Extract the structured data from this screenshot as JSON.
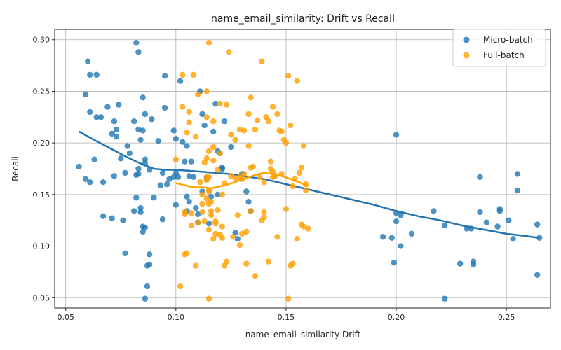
{
  "chart_data": {
    "type": "scatter",
    "title": "name_email_similarity: Drift vs Recall",
    "xlabel": "name_email_similarity Drift",
    "ylabel": "Recall",
    "xlim": [
      0.045,
      0.27
    ],
    "ylim": [
      0.04,
      0.31
    ],
    "xticks": [
      "0.05",
      "0.10",
      "0.15",
      "0.20",
      "0.25"
    ],
    "yticks": [
      "0.05",
      "0.10",
      "0.15",
      "0.20",
      "0.25",
      "0.30"
    ],
    "grid": true,
    "legend_position": "top-right",
    "series": [
      {
        "name": "Micro-batch",
        "color": "#1f77b4",
        "points": [
          [
            0.056,
            0.177
          ],
          [
            0.059,
            0.247
          ],
          [
            0.059,
            0.165
          ],
          [
            0.06,
            0.279
          ],
          [
            0.061,
            0.266
          ],
          [
            0.061,
            0.23
          ],
          [
            0.061,
            0.162
          ],
          [
            0.063,
            0.184
          ],
          [
            0.064,
            0.225
          ],
          [
            0.064,
            0.266
          ],
          [
            0.066,
            0.225
          ],
          [
            0.067,
            0.162
          ],
          [
            0.067,
            0.129
          ],
          [
            0.069,
            0.235
          ],
          [
            0.071,
            0.209
          ],
          [
            0.071,
            0.127
          ],
          [
            0.072,
            0.221
          ],
          [
            0.072,
            0.168
          ],
          [
            0.073,
            0.206
          ],
          [
            0.073,
            0.213
          ],
          [
            0.074,
            0.237
          ],
          [
            0.075,
            0.185
          ],
          [
            0.076,
            0.125
          ],
          [
            0.077,
            0.171
          ],
          [
            0.077,
            0.093
          ],
          [
            0.078,
            0.197
          ],
          [
            0.079,
            0.19
          ],
          [
            0.081,
            0.221
          ],
          [
            0.081,
            0.134
          ],
          [
            0.082,
            0.147
          ],
          [
            0.082,
            0.169
          ],
          [
            0.082,
            0.297
          ],
          [
            0.083,
            0.288
          ],
          [
            0.083,
            0.175
          ],
          [
            0.083,
            0.17
          ],
          [
            0.083,
            0.213
          ],
          [
            0.084,
            0.203
          ],
          [
            0.084,
            0.137
          ],
          [
            0.084,
            0.133
          ],
          [
            0.085,
            0.114
          ],
          [
            0.085,
            0.119
          ],
          [
            0.085,
            0.212
          ],
          [
            0.085,
            0.244
          ],
          [
            0.086,
            0.18
          ],
          [
            0.086,
            0.184
          ],
          [
            0.086,
            0.049
          ],
          [
            0.086,
            0.118
          ],
          [
            0.086,
            0.228
          ],
          [
            0.087,
            0.081
          ],
          [
            0.087,
            0.061
          ],
          [
            0.088,
            0.174
          ],
          [
            0.088,
            0.082
          ],
          [
            0.088,
            0.092
          ],
          [
            0.089,
            0.223
          ],
          [
            0.09,
            0.147
          ],
          [
            0.092,
            0.202
          ],
          [
            0.093,
            0.159
          ],
          [
            0.094,
            0.126
          ],
          [
            0.094,
            0.171
          ],
          [
            0.095,
            0.234
          ],
          [
            0.095,
            0.265
          ],
          [
            0.096,
            0.16
          ],
          [
            0.097,
            0.165
          ],
          [
            0.099,
            0.167
          ],
          [
            0.099,
            0.212
          ],
          [
            0.1,
            0.14
          ],
          [
            0.1,
            0.204
          ],
          [
            0.1,
            0.171
          ],
          [
            0.101,
            0.167
          ],
          [
            0.102,
            0.26
          ],
          [
            0.103,
            0.201
          ],
          [
            0.104,
            0.182
          ],
          [
            0.105,
            0.134
          ],
          [
            0.105,
            0.148
          ],
          [
            0.105,
            0.197
          ],
          [
            0.106,
            0.168
          ],
          [
            0.106,
            0.143
          ],
          [
            0.107,
            0.182
          ],
          [
            0.108,
            0.167
          ],
          [
            0.109,
            0.137
          ],
          [
            0.11,
            0.123
          ],
          [
            0.11,
            0.131
          ],
          [
            0.111,
            0.25
          ],
          [
            0.112,
            0.153
          ],
          [
            0.112,
            0.228
          ],
          [
            0.113,
            0.217
          ],
          [
            0.114,
            0.166
          ],
          [
            0.115,
            0.122
          ],
          [
            0.116,
            0.148
          ],
          [
            0.117,
            0.211
          ],
          [
            0.118,
            0.238
          ],
          [
            0.119,
            0.15
          ],
          [
            0.119,
            0.192
          ],
          [
            0.12,
            0.19
          ],
          [
            0.121,
            0.176
          ],
          [
            0.121,
            0.175
          ],
          [
            0.122,
            0.221
          ],
          [
            0.125,
            0.196
          ],
          [
            0.127,
            0.113
          ],
          [
            0.128,
            0.107
          ],
          [
            0.13,
            0.17
          ],
          [
            0.132,
            0.153
          ],
          [
            0.133,
            0.143
          ],
          [
            0.134,
            0.134
          ],
          [
            0.194,
            0.109
          ],
          [
            0.198,
            0.108
          ],
          [
            0.199,
            0.084
          ],
          [
            0.2,
            0.208
          ],
          [
            0.2,
            0.132
          ],
          [
            0.2,
            0.124
          ],
          [
            0.202,
            0.13
          ],
          [
            0.202,
            0.1
          ],
          [
            0.207,
            0.112
          ],
          [
            0.217,
            0.134
          ],
          [
            0.222,
            0.12
          ],
          [
            0.222,
            0.049
          ],
          [
            0.229,
            0.083
          ],
          [
            0.232,
            0.117
          ],
          [
            0.234,
            0.117
          ],
          [
            0.235,
            0.085
          ],
          [
            0.235,
            0.082
          ],
          [
            0.238,
            0.167
          ],
          [
            0.238,
            0.133
          ],
          [
            0.241,
            0.123
          ],
          [
            0.247,
            0.134
          ],
          [
            0.247,
            0.136
          ],
          [
            0.246,
            0.119
          ],
          [
            0.251,
            0.125
          ],
          [
            0.253,
            0.107
          ],
          [
            0.255,
            0.17
          ],
          [
            0.255,
            0.154
          ],
          [
            0.264,
            0.121
          ],
          [
            0.265,
            0.108
          ],
          [
            0.264,
            0.072
          ]
        ]
      },
      {
        "name": "Full-batch",
        "color": "#ff9f00",
        "points": [
          [
            0.1,
            0.184
          ],
          [
            0.102,
            0.061
          ],
          [
            0.103,
            0.235
          ],
          [
            0.103,
            0.266
          ],
          [
            0.104,
            0.133
          ],
          [
            0.104,
            0.131
          ],
          [
            0.104,
            0.092
          ],
          [
            0.105,
            0.21
          ],
          [
            0.105,
            0.093
          ],
          [
            0.106,
            0.22
          ],
          [
            0.106,
            0.23
          ],
          [
            0.107,
            0.12
          ],
          [
            0.107,
            0.132
          ],
          [
            0.108,
            0.266
          ],
          [
            0.109,
            0.081
          ],
          [
            0.109,
            0.206
          ],
          [
            0.11,
            0.123
          ],
          [
            0.11,
            0.247
          ],
          [
            0.111,
            0.162
          ],
          [
            0.112,
            0.133
          ],
          [
            0.112,
            0.15
          ],
          [
            0.112,
            0.141
          ],
          [
            0.113,
            0.181
          ],
          [
            0.113,
            0.124
          ],
          [
            0.114,
            0.25
          ],
          [
            0.114,
            0.225
          ],
          [
            0.114,
            0.164
          ],
          [
            0.114,
            0.146
          ],
          [
            0.114,
            0.185
          ],
          [
            0.114,
            0.167
          ],
          [
            0.115,
            0.049
          ],
          [
            0.115,
            0.297
          ],
          [
            0.115,
            0.154
          ],
          [
            0.115,
            0.192
          ],
          [
            0.115,
            0.167
          ],
          [
            0.115,
            0.153
          ],
          [
            0.115,
            0.116
          ],
          [
            0.115,
            0.141
          ],
          [
            0.116,
            0.13
          ],
          [
            0.116,
            0.143
          ],
          [
            0.116,
            0.134
          ],
          [
            0.117,
            0.107
          ],
          [
            0.117,
            0.221
          ],
          [
            0.117,
            0.196
          ],
          [
            0.117,
            0.183
          ],
          [
            0.118,
            0.112
          ],
          [
            0.118,
            0.122
          ],
          [
            0.118,
            0.124
          ],
          [
            0.119,
            0.174
          ],
          [
            0.119,
            0.135
          ],
          [
            0.12,
            0.111
          ],
          [
            0.12,
            0.238
          ],
          [
            0.12,
            0.19
          ],
          [
            0.121,
            0.15
          ],
          [
            0.121,
            0.108
          ],
          [
            0.121,
            0.119
          ],
          [
            0.122,
            0.081
          ],
          [
            0.122,
            0.161
          ],
          [
            0.123,
            0.085
          ],
          [
            0.123,
            0.237
          ],
          [
            0.124,
            0.288
          ],
          [
            0.125,
            0.208
          ],
          [
            0.125,
            0.168
          ],
          [
            0.126,
            0.109
          ],
          [
            0.127,
            0.203
          ],
          [
            0.127,
            0.166
          ],
          [
            0.128,
            0.13
          ],
          [
            0.129,
            0.213
          ],
          [
            0.129,
            0.167
          ],
          [
            0.129,
            0.101
          ],
          [
            0.13,
            0.112
          ],
          [
            0.13,
            0.165
          ],
          [
            0.131,
            0.17
          ],
          [
            0.131,
            0.212
          ],
          [
            0.132,
            0.083
          ],
          [
            0.132,
            0.114
          ],
          [
            0.133,
            0.228
          ],
          [
            0.133,
            0.197
          ],
          [
            0.134,
            0.134
          ],
          [
            0.134,
            0.176
          ],
          [
            0.134,
            0.244
          ],
          [
            0.135,
            0.177
          ],
          [
            0.136,
            0.071
          ],
          [
            0.136,
            0.213
          ],
          [
            0.137,
            0.222
          ],
          [
            0.138,
            0.167
          ],
          [
            0.139,
            0.279
          ],
          [
            0.139,
            0.125
          ],
          [
            0.14,
            0.128
          ],
          [
            0.14,
            0.133
          ],
          [
            0.14,
            0.162
          ],
          [
            0.141,
            0.225
          ],
          [
            0.142,
            0.085
          ],
          [
            0.142,
            0.221
          ],
          [
            0.143,
            0.182
          ],
          [
            0.143,
            0.175
          ],
          [
            0.144,
            0.235
          ],
          [
            0.144,
            0.167
          ],
          [
            0.144,
            0.172
          ],
          [
            0.145,
            0.168
          ],
          [
            0.146,
            0.228
          ],
          [
            0.146,
            0.109
          ],
          [
            0.147,
            0.212
          ],
          [
            0.148,
            0.211
          ],
          [
            0.148,
            0.17
          ],
          [
            0.149,
            0.203
          ],
          [
            0.15,
            0.136
          ],
          [
            0.15,
            0.2
          ],
          [
            0.151,
            0.265
          ],
          [
            0.151,
            0.049
          ],
          [
            0.152,
            0.217
          ],
          [
            0.152,
            0.081
          ],
          [
            0.153,
            0.158
          ],
          [
            0.153,
            0.083
          ],
          [
            0.154,
            0.165
          ],
          [
            0.155,
            0.26
          ],
          [
            0.155,
            0.107
          ],
          [
            0.156,
            0.171
          ],
          [
            0.157,
            0.121
          ],
          [
            0.157,
            0.176
          ],
          [
            0.158,
            0.119
          ],
          [
            0.158,
            0.197
          ],
          [
            0.159,
            0.16
          ],
          [
            0.159,
            0.154
          ],
          [
            0.16,
            0.117
          ]
        ]
      }
    ],
    "trend_lines": [
      {
        "series": "Micro-batch",
        "color": "#2473b0",
        "points": [
          [
            0.056,
            0.211
          ],
          [
            0.062,
            0.204
          ],
          [
            0.07,
            0.195
          ],
          [
            0.078,
            0.186
          ],
          [
            0.084,
            0.18
          ],
          [
            0.09,
            0.175
          ],
          [
            0.095,
            0.174
          ],
          [
            0.1,
            0.174
          ],
          [
            0.106,
            0.173
          ],
          [
            0.112,
            0.172
          ],
          [
            0.118,
            0.171
          ],
          [
            0.124,
            0.17
          ],
          [
            0.13,
            0.168
          ],
          [
            0.14,
            0.165
          ],
          [
            0.15,
            0.16
          ],
          [
            0.16,
            0.155
          ],
          [
            0.17,
            0.15
          ],
          [
            0.18,
            0.145
          ],
          [
            0.19,
            0.14
          ],
          [
            0.2,
            0.134
          ],
          [
            0.21,
            0.129
          ],
          [
            0.22,
            0.125
          ],
          [
            0.23,
            0.12
          ],
          [
            0.24,
            0.116
          ],
          [
            0.25,
            0.112
          ],
          [
            0.258,
            0.11
          ],
          [
            0.265,
            0.108
          ]
        ]
      },
      {
        "series": "Full-batch",
        "color": "#ffa500",
        "points": [
          [
            0.1,
            0.161
          ],
          [
            0.104,
            0.159
          ],
          [
            0.108,
            0.157
          ],
          [
            0.112,
            0.157
          ],
          [
            0.116,
            0.156
          ],
          [
            0.12,
            0.158
          ],
          [
            0.124,
            0.16
          ],
          [
            0.128,
            0.163
          ],
          [
            0.132,
            0.166
          ],
          [
            0.136,
            0.169
          ],
          [
            0.14,
            0.171
          ],
          [
            0.144,
            0.17
          ],
          [
            0.148,
            0.168
          ],
          [
            0.152,
            0.165
          ],
          [
            0.156,
            0.162
          ],
          [
            0.16,
            0.158
          ]
        ]
      }
    ]
  }
}
